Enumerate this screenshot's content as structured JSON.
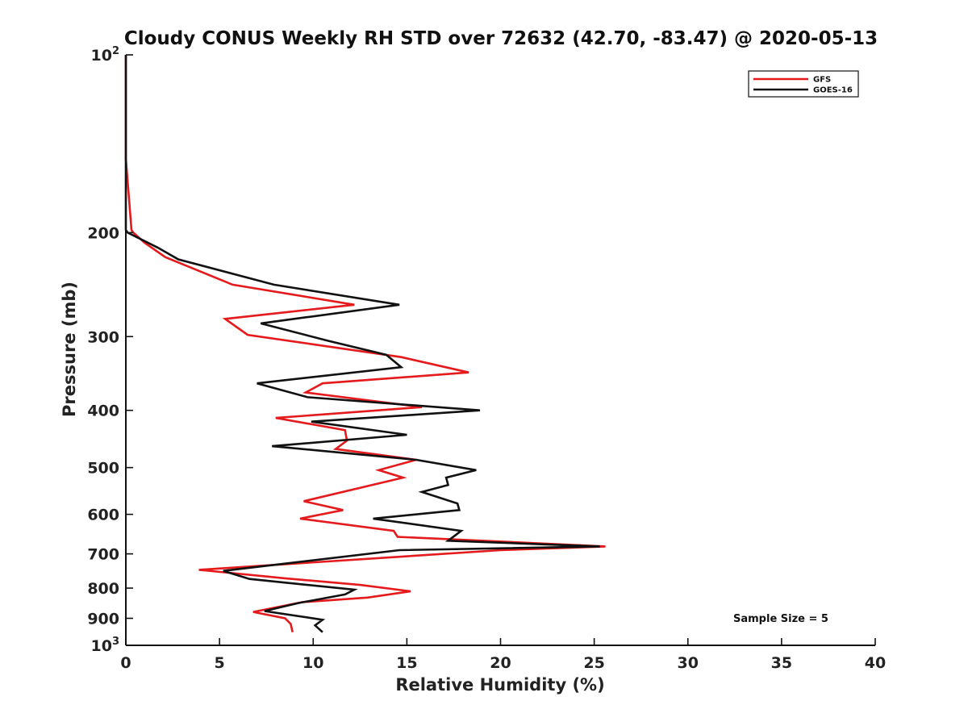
{
  "chart_data": {
    "type": "line",
    "title": "Cloudy CONUS Weekly RH STD over 72632 (42.70, -83.47) @ 2020-05-13",
    "xlabel": "Relative Humidity (%)",
    "ylabel": "Pressure (mb)",
    "xlim": [
      0,
      40
    ],
    "ylim": [
      100,
      1000
    ],
    "yscale": "log",
    "y_reversed": true,
    "x_ticks": [
      "0",
      "5",
      "10",
      "15",
      "20",
      "25",
      "30",
      "35",
      "40"
    ],
    "y_ticks": [
      {
        "value": 100,
        "base": "10",
        "exp": "2"
      },
      {
        "value": 200,
        "label": "200"
      },
      {
        "value": 300,
        "label": "300"
      },
      {
        "value": 400,
        "label": "400"
      },
      {
        "value": 500,
        "label": "500"
      },
      {
        "value": 600,
        "label": "600"
      },
      {
        "value": 700,
        "label": "700"
      },
      {
        "value": 800,
        "label": "800"
      },
      {
        "value": 900,
        "label": "900"
      },
      {
        "value": 1000,
        "base": "10",
        "exp": "3"
      }
    ],
    "grid": false,
    "legend_position": "top-right",
    "annotation": "Sample Size = 5",
    "series": [
      {
        "name": "GFS",
        "color": "#e41a1c",
        "points": [
          [
            0.0,
            100
          ],
          [
            0.0,
            150
          ],
          [
            0.2,
            180
          ],
          [
            0.3,
            198
          ],
          [
            0.4,
            200
          ],
          [
            1.0,
            208
          ],
          [
            2.1,
            220
          ],
          [
            5.7,
            245
          ],
          [
            12.2,
            265
          ],
          [
            5.3,
            280
          ],
          [
            6.5,
            298
          ],
          [
            14.7,
            325
          ],
          [
            18.3,
            345
          ],
          [
            10.5,
            360
          ],
          [
            9.6,
            373
          ],
          [
            15.8,
            395
          ],
          [
            8.0,
            412
          ],
          [
            11.7,
            432
          ],
          [
            11.8,
            450
          ],
          [
            11.2,
            465
          ],
          [
            15.5,
            485
          ],
          [
            13.5,
            505
          ],
          [
            14.8,
            520
          ],
          [
            9.5,
            570
          ],
          [
            11.6,
            590
          ],
          [
            9.3,
            610
          ],
          [
            14.3,
            640
          ],
          [
            14.5,
            655
          ],
          [
            25.6,
            680
          ],
          [
            20.0,
            690
          ],
          [
            3.9,
            745
          ],
          [
            8.5,
            770
          ],
          [
            12.5,
            790
          ],
          [
            15.2,
            810
          ],
          [
            12.9,
            830
          ],
          [
            9.4,
            845
          ],
          [
            6.8,
            878
          ],
          [
            8.5,
            900
          ],
          [
            8.8,
            920
          ],
          [
            8.9,
            950
          ]
        ]
      },
      {
        "name": "GOES-16",
        "color": "#111111",
        "points": [
          [
            0.0,
            100
          ],
          [
            0.0,
            150
          ],
          [
            0.0,
            180
          ],
          [
            0.0,
            198
          ],
          [
            0.1,
            200
          ],
          [
            1.7,
            212
          ],
          [
            2.8,
            222
          ],
          [
            7.9,
            245
          ],
          [
            14.6,
            265
          ],
          [
            7.2,
            285
          ],
          [
            10.8,
            305
          ],
          [
            13.9,
            322
          ],
          [
            14.7,
            338
          ],
          [
            7.0,
            360
          ],
          [
            9.7,
            380
          ],
          [
            18.9,
            400
          ],
          [
            9.9,
            418
          ],
          [
            15.0,
            440
          ],
          [
            7.8,
            460
          ],
          [
            15.5,
            485
          ],
          [
            18.7,
            505
          ],
          [
            17.1,
            520
          ],
          [
            17.2,
            535
          ],
          [
            15.8,
            550
          ],
          [
            17.7,
            575
          ],
          [
            17.8,
            590
          ],
          [
            13.2,
            610
          ],
          [
            17.9,
            640
          ],
          [
            17.2,
            665
          ],
          [
            25.3,
            680
          ],
          [
            14.6,
            690
          ],
          [
            5.2,
            748
          ],
          [
            6.6,
            772
          ],
          [
            12.2,
            805
          ],
          [
            11.7,
            820
          ],
          [
            9.2,
            848
          ],
          [
            7.4,
            875
          ],
          [
            10.5,
            905
          ],
          [
            10.1,
            925
          ],
          [
            10.5,
            950
          ]
        ]
      }
    ]
  }
}
